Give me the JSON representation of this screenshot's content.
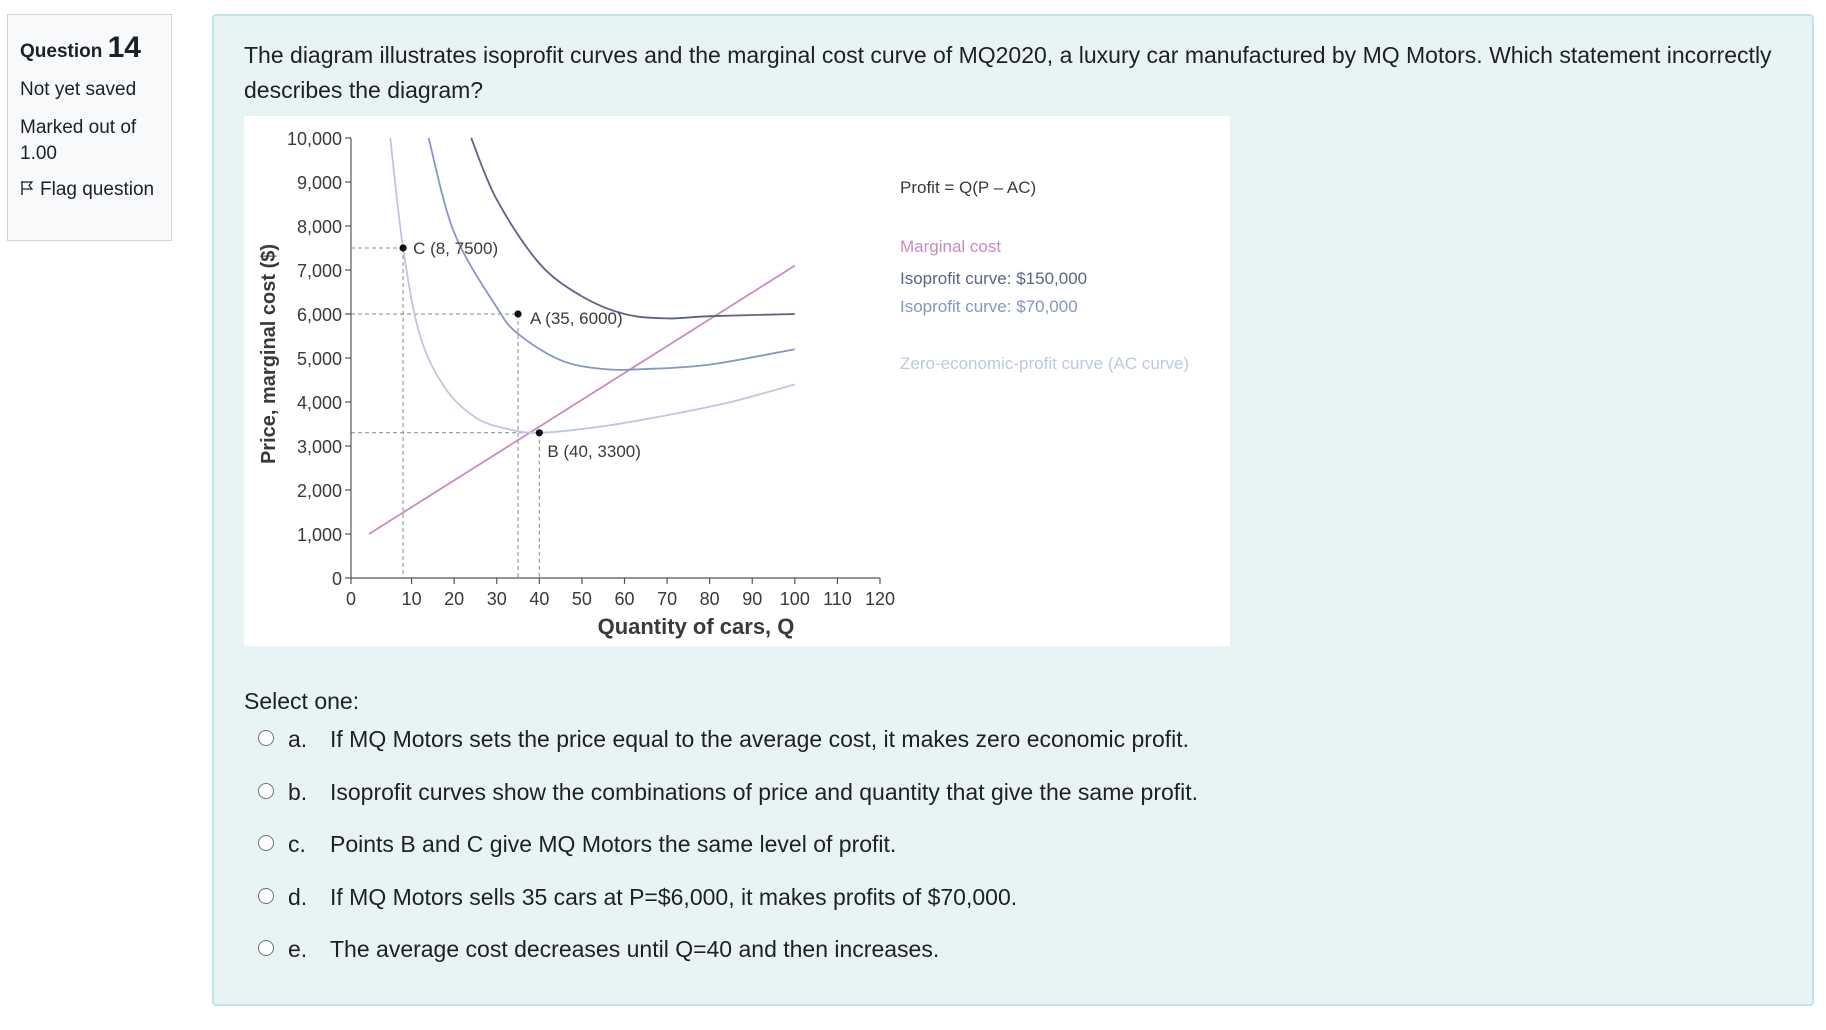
{
  "info": {
    "question_label": "Question",
    "question_number": "14",
    "state": "Not yet saved",
    "grade": "Marked out of 1.00",
    "flag_label": "Flag question"
  },
  "question": {
    "text": "The diagram illustrates isoprofit curves and the marginal cost curve of MQ2020, a luxury car manufactured by MQ Motors. Which statement incorrectly describes the diagram?",
    "prompt": "Select one:",
    "answers": [
      {
        "letter": "a.",
        "text": "If MQ Motors sets the price equal to the average cost, it makes zero economic profit."
      },
      {
        "letter": "b.",
        "text": "Isoprofit curves show the combinations of price and quantity that give the same profit."
      },
      {
        "letter": "c.",
        "text": "Points B and C give MQ Motors the same level of profit."
      },
      {
        "letter": "d.",
        "text": "If MQ Motors sells 35 cars at P=$6,000, it makes profits of $70,000."
      },
      {
        "letter": "e.",
        "text": "The average cost decreases until Q=40 and then increases."
      }
    ]
  },
  "chart_data": {
    "type": "line",
    "xlabel": "Quantity of cars, Q",
    "ylabel": "Price, marginal cost ($)",
    "xlim": [
      0,
      120
    ],
    "ylim": [
      0,
      10000
    ],
    "x_ticks": [
      0,
      10,
      20,
      30,
      40,
      50,
      60,
      70,
      80,
      90,
      100,
      110,
      120
    ],
    "y_ticks": [
      0,
      1000,
      2000,
      3000,
      4000,
      5000,
      6000,
      7000,
      8000,
      9000,
      10000
    ],
    "x_tick_labels": [
      "0",
      "10",
      "20",
      "30",
      "40",
      "50",
      "60",
      "70",
      "80",
      "90",
      "100",
      "110",
      "120"
    ],
    "y_tick_labels": [
      "0",
      "1,000",
      "2,000",
      "3,000",
      "4,000",
      "5,000",
      "6,000",
      "7,000",
      "8,000",
      "9,000",
      "10,000"
    ],
    "formula": "Profit = Q(P – AC)",
    "series": [
      {
        "name": "Marginal cost",
        "color": "#c98bc0",
        "points": [
          [
            0,
            1000
          ],
          [
            100,
            7100
          ]
        ]
      },
      {
        "name": "Isoprofit curve: $150,000",
        "color": "#5b6487",
        "points": [
          [
            24,
            10000
          ],
          [
            30,
            8600
          ],
          [
            40,
            7150
          ],
          [
            50,
            6400
          ],
          [
            60,
            6000
          ],
          [
            70,
            5900
          ],
          [
            80,
            5950
          ],
          [
            100,
            6000
          ]
        ]
      },
      {
        "name": "Isoprofit curve: $70,000",
        "color": "#8796c4",
        "points": [
          [
            14,
            10000
          ],
          [
            20,
            7850
          ],
          [
            30,
            6150
          ],
          [
            35,
            5550
          ],
          [
            45,
            4950
          ],
          [
            55,
            4750
          ],
          [
            65,
            4750
          ],
          [
            80,
            4850
          ],
          [
            100,
            5200
          ]
        ]
      },
      {
        "name": "Zero-economic-profit curve (AC curve)",
        "color": "#bdc8e0",
        "points": [
          [
            5,
            10000
          ],
          [
            8,
            7500
          ],
          [
            12,
            5500
          ],
          [
            18,
            4300
          ],
          [
            25,
            3650
          ],
          [
            32,
            3400
          ],
          [
            40,
            3300
          ],
          [
            55,
            3450
          ],
          [
            70,
            3700
          ],
          [
            85,
            4000
          ],
          [
            100,
            4400
          ]
        ]
      }
    ],
    "points": [
      {
        "label": "C (8, 7500)",
        "x": 8,
        "y": 7500
      },
      {
        "label": "A (35, 6000)",
        "x": 35,
        "y": 6000
      },
      {
        "label": "B (40, 3300)",
        "x": 40,
        "y": 3300
      }
    ],
    "legend": "right"
  }
}
